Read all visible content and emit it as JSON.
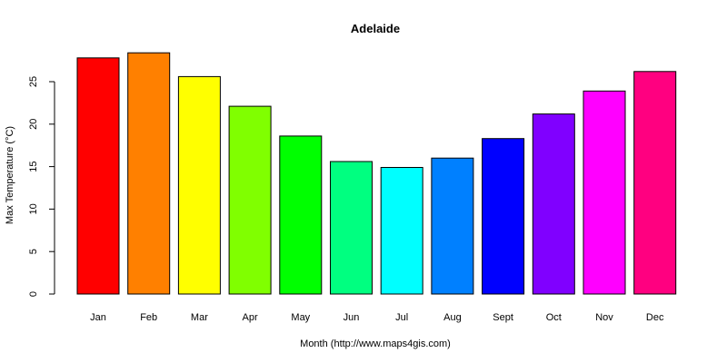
{
  "chart_data": {
    "type": "bar",
    "title": "Adelaide",
    "xlabel": "Month (http://www.maps4gis.com)",
    "ylabel": "Max Temperature (°C)",
    "categories": [
      "Jan",
      "Feb",
      "Mar",
      "Apr",
      "May",
      "Jun",
      "Jul",
      "Aug",
      "Sept",
      "Oct",
      "Nov",
      "Dec"
    ],
    "values": [
      27.8,
      28.4,
      25.6,
      22.1,
      18.6,
      15.6,
      14.9,
      16.0,
      18.3,
      21.2,
      23.9,
      26.2
    ],
    "colors": [
      "#FF0000",
      "#FF8000",
      "#FFFF00",
      "#80FF00",
      "#00FF00",
      "#00FF80",
      "#00FFFF",
      "#0080FF",
      "#0000FF",
      "#8000FF",
      "#FF00FF",
      "#FF0080"
    ],
    "yticks": [
      "0",
      "5",
      "10",
      "15",
      "20",
      "25"
    ],
    "ylim": [
      0,
      30
    ],
    "grid": false,
    "legend": "none"
  }
}
